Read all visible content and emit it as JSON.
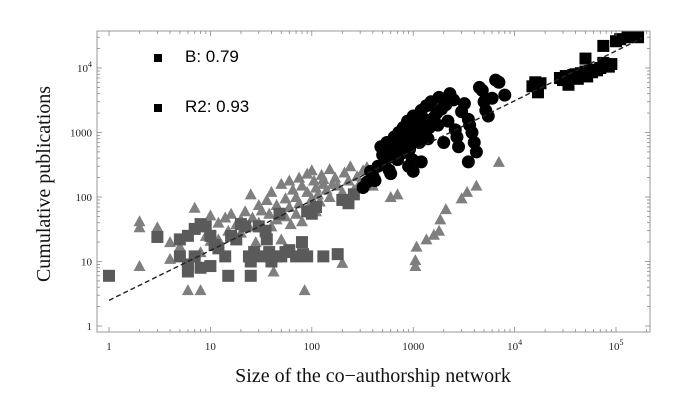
{
  "chart_data": {
    "type": "scatter",
    "title": "",
    "xlabel": "Size of the co−authorship network",
    "ylabel": "Cumulative publications",
    "xscale": "log",
    "yscale": "log",
    "xlim": [
      0.75,
      200000
    ],
    "ylim": [
      0.9,
      40000
    ],
    "grid": false,
    "x_ticks": [
      {
        "value": 1,
        "label": "1"
      },
      {
        "value": 10,
        "label": "10"
      },
      {
        "value": 100,
        "label": "100"
      },
      {
        "value": 1000,
        "label": "1000"
      },
      {
        "value": 10000,
        "label": "10",
        "sup": "4"
      },
      {
        "value": 100000,
        "label": "10",
        "sup": "5"
      }
    ],
    "y_ticks": [
      {
        "value": 1,
        "label": "1"
      },
      {
        "value": 10,
        "label": "10"
      },
      {
        "value": 100,
        "label": "100"
      },
      {
        "value": 1000,
        "label": "1000"
      },
      {
        "value": 10000,
        "label": "10",
        "sup": "4"
      }
    ],
    "annotations": [
      {
        "marker": "square",
        "text": "B: 0.79"
      },
      {
        "marker": "square",
        "text": "R2: 0.93"
      }
    ],
    "fit_line": {
      "style": "dashed",
      "color": "#222222",
      "x": [
        1,
        180000
      ],
      "y": [
        2.5,
        29000
      ],
      "slope": 0.79,
      "r2": 0.93
    },
    "series": [
      {
        "name": "gray-triangles",
        "marker": "triangle",
        "color": "#7f7f7f",
        "points": [
          [
            2,
            42
          ],
          [
            2,
            34
          ],
          [
            2,
            8.5
          ],
          [
            3,
            34
          ],
          [
            4,
            20
          ],
          [
            4,
            11
          ],
          [
            5,
            17
          ],
          [
            6,
            3.6
          ],
          [
            8,
            3.6
          ],
          [
            8,
            14
          ],
          [
            7,
            68
          ],
          [
            9,
            25
          ],
          [
            10,
            52
          ],
          [
            10,
            21
          ],
          [
            12,
            40
          ],
          [
            12,
            22
          ],
          [
            14,
            48
          ],
          [
            15,
            30
          ],
          [
            16,
            55
          ],
          [
            18,
            38
          ],
          [
            18,
            24
          ],
          [
            20,
            45
          ],
          [
            20,
            28
          ],
          [
            22,
            60
          ],
          [
            24,
            35
          ],
          [
            25,
            110
          ],
          [
            26,
            48
          ],
          [
            28,
            20
          ],
          [
            30,
            75
          ],
          [
            30,
            40
          ],
          [
            32,
            62
          ],
          [
            35,
            28
          ],
          [
            36,
            90
          ],
          [
            38,
            55
          ],
          [
            40,
            120
          ],
          [
            40,
            35
          ],
          [
            42,
            7
          ],
          [
            45,
            75
          ],
          [
            45,
            45
          ],
          [
            48,
            60
          ],
          [
            50,
            160
          ],
          [
            50,
            22
          ],
          [
            55,
            95
          ],
          [
            55,
            50
          ],
          [
            60,
            180
          ],
          [
            60,
            70
          ],
          [
            62,
            38
          ],
          [
            65,
            130
          ],
          [
            70,
            100
          ],
          [
            70,
            55
          ],
          [
            75,
            200
          ],
          [
            75,
            80
          ],
          [
            80,
            150
          ],
          [
            80,
            42
          ],
          [
            85,
            3.6
          ],
          [
            90,
            230
          ],
          [
            90,
            120
          ],
          [
            95,
            75
          ],
          [
            100,
            260
          ],
          [
            100,
            95
          ],
          [
            105,
            180
          ],
          [
            110,
            140
          ],
          [
            110,
            60
          ],
          [
            115,
            110
          ],
          [
            120,
            85
          ],
          [
            125,
            220
          ],
          [
            130,
            160
          ],
          [
            130,
            190
          ],
          [
            140,
            130
          ],
          [
            150,
            270
          ],
          [
            150,
            100
          ],
          [
            160,
            160
          ],
          [
            170,
            200
          ],
          [
            180,
            150
          ],
          [
            200,
            120
          ],
          [
            200,
            9.5
          ],
          [
            210,
            240
          ],
          [
            230,
            180
          ],
          [
            240,
            300
          ],
          [
            260,
            130
          ],
          [
            280,
            210
          ],
          [
            300,
            170
          ],
          [
            320,
            260
          ],
          [
            350,
            290
          ],
          [
            380,
            220
          ],
          [
            400,
            150
          ],
          [
            420,
            240
          ],
          [
            1050,
            8.5
          ],
          [
            1050,
            10.5
          ],
          [
            1080,
            17
          ],
          [
            1350,
            22
          ],
          [
            1600,
            26
          ],
          [
            1800,
            30
          ],
          [
            1850,
            45
          ],
          [
            2100,
            65
          ],
          [
            3000,
            95
          ],
          [
            3400,
            120
          ],
          [
            4200,
            150
          ],
          [
            7000,
            350
          ],
          [
            600,
            100
          ],
          [
            700,
            110
          ]
        ]
      },
      {
        "name": "dark-gray-squares",
        "marker": "square",
        "color": "#5a5a5a",
        "points": [
          [
            1,
            6
          ],
          [
            3,
            24
          ],
          [
            5,
            22
          ],
          [
            5,
            12
          ],
          [
            6,
            25
          ],
          [
            6,
            9
          ],
          [
            6,
            7
          ],
          [
            7,
            32
          ],
          [
            7,
            12
          ],
          [
            8,
            38
          ],
          [
            8,
            8
          ],
          [
            9,
            35
          ],
          [
            10,
            8.5
          ],
          [
            10,
            25
          ],
          [
            11,
            18
          ],
          [
            12,
            16
          ],
          [
            14,
            12
          ],
          [
            15,
            6
          ],
          [
            16,
            25
          ],
          [
            18,
            22
          ],
          [
            20,
            38
          ],
          [
            22,
            35
          ],
          [
            24,
            12
          ],
          [
            25,
            6
          ],
          [
            25,
            10
          ],
          [
            27,
            14
          ],
          [
            30,
            35
          ],
          [
            32,
            12
          ],
          [
            35,
            30
          ],
          [
            36,
            22
          ],
          [
            38,
            14
          ],
          [
            40,
            10
          ],
          [
            45,
            12
          ],
          [
            48,
            55
          ],
          [
            50,
            12
          ],
          [
            55,
            14
          ],
          [
            60,
            15
          ],
          [
            70,
            12
          ],
          [
            80,
            20
          ],
          [
            82,
            13
          ],
          [
            90,
            12
          ],
          [
            90,
            60
          ],
          [
            100,
            55
          ],
          [
            110,
            70
          ],
          [
            130,
            12
          ],
          [
            180,
            13
          ],
          [
            200,
            90
          ],
          [
            230,
            80
          ],
          [
            260,
            110
          ]
        ]
      },
      {
        "name": "black-circles",
        "marker": "circle",
        "color": "#000000",
        "points": [
          [
            320,
            140
          ],
          [
            350,
            170
          ],
          [
            380,
            250
          ],
          [
            400,
            210
          ],
          [
            420,
            180
          ],
          [
            450,
            300
          ],
          [
            480,
            600
          ],
          [
            500,
            450
          ],
          [
            520,
            320
          ],
          [
            550,
            700
          ],
          [
            560,
            400
          ],
          [
            580,
            260
          ],
          [
            600,
            230
          ],
          [
            620,
            520
          ],
          [
            650,
            850
          ],
          [
            680,
            600
          ],
          [
            700,
            380
          ],
          [
            720,
            1000
          ],
          [
            750,
            700
          ],
          [
            780,
            480
          ],
          [
            800,
            1200
          ],
          [
            820,
            900
          ],
          [
            850,
            620
          ],
          [
            880,
            1500
          ],
          [
            900,
            750
          ],
          [
            920,
            550
          ],
          [
            950,
            1100
          ],
          [
            980,
            380
          ],
          [
            1000,
            1800
          ],
          [
            1050,
            900
          ],
          [
            1100,
            1300
          ],
          [
            1150,
            700
          ],
          [
            1200,
            2200
          ],
          [
            1250,
            1000
          ],
          [
            1300,
            1600
          ],
          [
            1350,
            2600
          ],
          [
            1400,
            800
          ],
          [
            1450,
            1200
          ],
          [
            1500,
            3000
          ],
          [
            1600,
            1700
          ],
          [
            1700,
            2000
          ],
          [
            1750,
            1300
          ],
          [
            1800,
            3500
          ],
          [
            1900,
            2300
          ],
          [
            2000,
            700
          ],
          [
            2100,
            2700
          ],
          [
            2200,
            1500
          ],
          [
            2300,
            4000
          ],
          [
            2500,
            3200
          ],
          [
            2600,
            1100
          ],
          [
            2700,
            850
          ],
          [
            2800,
            600
          ],
          [
            3000,
            2100
          ],
          [
            3200,
            2800
          ],
          [
            3500,
            1600
          ],
          [
            3600,
            1300
          ],
          [
            3800,
            1000
          ],
          [
            4000,
            700
          ],
          [
            4200,
            500
          ],
          [
            4500,
            5000
          ],
          [
            4800,
            4500
          ],
          [
            5000,
            3000
          ],
          [
            5200,
            2200
          ],
          [
            5500,
            1800
          ],
          [
            6000,
            3400
          ],
          [
            6500,
            6500
          ],
          [
            7000,
            6000
          ],
          [
            8000,
            3800
          ],
          [
            900,
            300
          ],
          [
            1000,
            250
          ],
          [
            1200,
            350
          ],
          [
            3500,
            350
          ]
        ]
      },
      {
        "name": "black-squares",
        "marker": "square",
        "color": "#000000",
        "points": [
          [
            15000,
            5200
          ],
          [
            16000,
            6000
          ],
          [
            17000,
            4200
          ],
          [
            18000,
            5800
          ],
          [
            28000,
            7000
          ],
          [
            30000,
            6500
          ],
          [
            32000,
            7500
          ],
          [
            34000,
            5500
          ],
          [
            36000,
            7200
          ],
          [
            38000,
            7800
          ],
          [
            40000,
            8000
          ],
          [
            42000,
            6800
          ],
          [
            45000,
            8300
          ],
          [
            48000,
            7900
          ],
          [
            50000,
            8800
          ],
          [
            52000,
            7400
          ],
          [
            55000,
            9000
          ],
          [
            58000,
            8600
          ],
          [
            60000,
            9400
          ],
          [
            65000,
            9200
          ],
          [
            70000,
            10000
          ],
          [
            75000,
            12000
          ],
          [
            80000,
            11000
          ],
          [
            85000,
            10500
          ],
          [
            90000,
            11500
          ],
          [
            50000,
            14000
          ],
          [
            75000,
            22000
          ],
          [
            100000,
            26000
          ],
          [
            110000,
            28000
          ],
          [
            130000,
            30000
          ],
          [
            165000,
            30000
          ]
        ]
      }
    ]
  }
}
